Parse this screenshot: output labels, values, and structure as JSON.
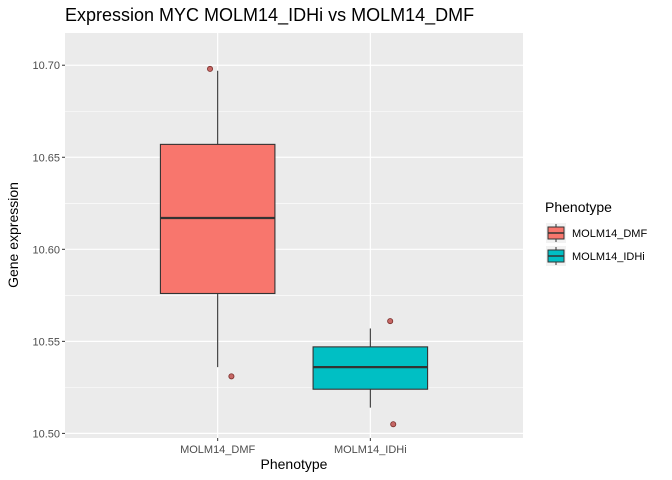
{
  "chart_data": {
    "type": "boxplot",
    "title": "Expression MYC MOLM14_IDHi vs MOLM14_DMF",
    "xlabel": "Phenotype",
    "ylabel": "Gene expression",
    "ylim": [
      10.4975,
      10.7175
    ],
    "y_ticks": [
      "10.50",
      "10.55",
      "10.60",
      "10.65",
      "10.70"
    ],
    "categories": [
      "MOLM14_DMF",
      "MOLM14_IDHi"
    ],
    "boxes": [
      {
        "category": "MOLM14_DMF",
        "min": 10.536,
        "q1": 10.576,
        "median": 10.617,
        "q3": 10.657,
        "max": 10.697,
        "color": "#F8766D"
      },
      {
        "category": "MOLM14_IDHi",
        "min": 10.514,
        "q1": 10.524,
        "median": 10.536,
        "q3": 10.547,
        "max": 10.557,
        "color": "#00BFC4"
      }
    ],
    "points": [
      {
        "category": "MOLM14_DMF",
        "offset": -0.05,
        "y": 10.698
      },
      {
        "category": "MOLM14_DMF",
        "offset": 0.09,
        "y": 10.531
      },
      {
        "category": "MOLM14_IDHi",
        "offset": 0.13,
        "y": 10.561
      },
      {
        "category": "MOLM14_IDHi",
        "offset": 0.15,
        "y": 10.505
      }
    ],
    "point_color": "#C0504D",
    "grid": true,
    "panel_background": "#EBEBEB",
    "legend": {
      "title": "Phenotype",
      "position": "right",
      "entries": [
        {
          "label": "MOLM14_DMF",
          "color": "#F8766D"
        },
        {
          "label": "MOLM14_IDHi",
          "color": "#00BFC4"
        }
      ]
    }
  }
}
